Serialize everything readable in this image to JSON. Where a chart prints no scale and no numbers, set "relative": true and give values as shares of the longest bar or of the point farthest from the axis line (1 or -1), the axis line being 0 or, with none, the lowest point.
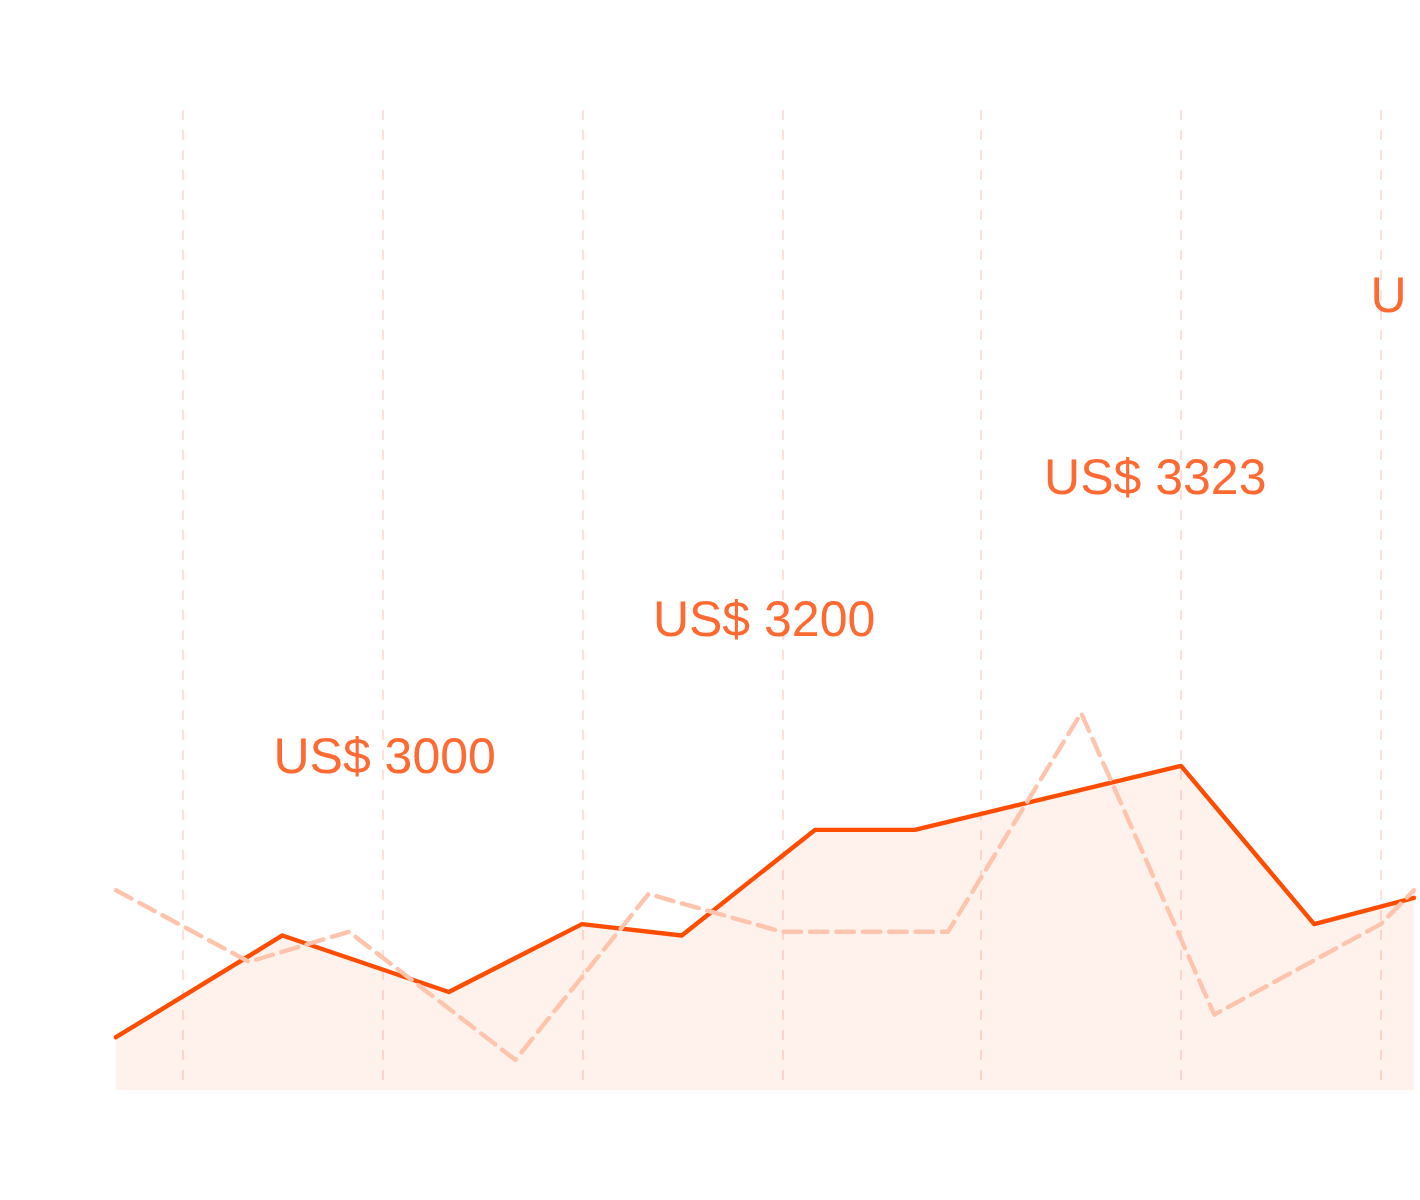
{
  "chart_data": {
    "type": "line",
    "relative": true,
    "categories": [
      null,
      null,
      null,
      null,
      null,
      null,
      null,
      null,
      null,
      null,
      null,
      null,
      null,
      null,
      null,
      null,
      null,
      null,
      null,
      null,
      null,
      null,
      null,
      null,
      null,
      null,
      null,
      null,
      null,
      null,
      null,
      null,
      null,
      null,
      null,
      null,
      null,
      null,
      null,
      null
    ],
    "grid": "x",
    "marker": "none",
    "series": [
      {
        "type": "area",
        "color": "#ff4d00",
        "line_style": "solid",
        "values": [
          0.14,
          null,
          null,
          null,
          null,
          0.41,
          null,
          null,
          null,
          null,
          0.26,
          null,
          null,
          null,
          0.44,
          null,
          null,
          0.41,
          null,
          null,
          null,
          0.69,
          null,
          null,
          0.69,
          null,
          null,
          null,
          null,
          null,
          null,
          null,
          0.86,
          null,
          null,
          null,
          0.44,
          null,
          null,
          0.51
        ]
      },
      {
        "color": "#ffc4ad",
        "line_style": "dashed",
        "values": [
          0.53,
          null,
          null,
          null,
          0.34,
          null,
          null,
          0.42,
          null,
          null,
          null,
          null,
          0.08,
          null,
          null,
          null,
          0.52,
          null,
          null,
          null,
          0.42,
          null,
          null,
          null,
          null,
          0.42,
          null,
          null,
          null,
          1.0,
          null,
          null,
          null,
          0.2,
          null,
          null,
          null,
          null,
          0.44,
          0.53
        ]
      }
    ],
    "annotations": [
      "US$ 3000",
      "US$ 3200",
      "US$ 3323",
      "U"
    ]
  }
}
